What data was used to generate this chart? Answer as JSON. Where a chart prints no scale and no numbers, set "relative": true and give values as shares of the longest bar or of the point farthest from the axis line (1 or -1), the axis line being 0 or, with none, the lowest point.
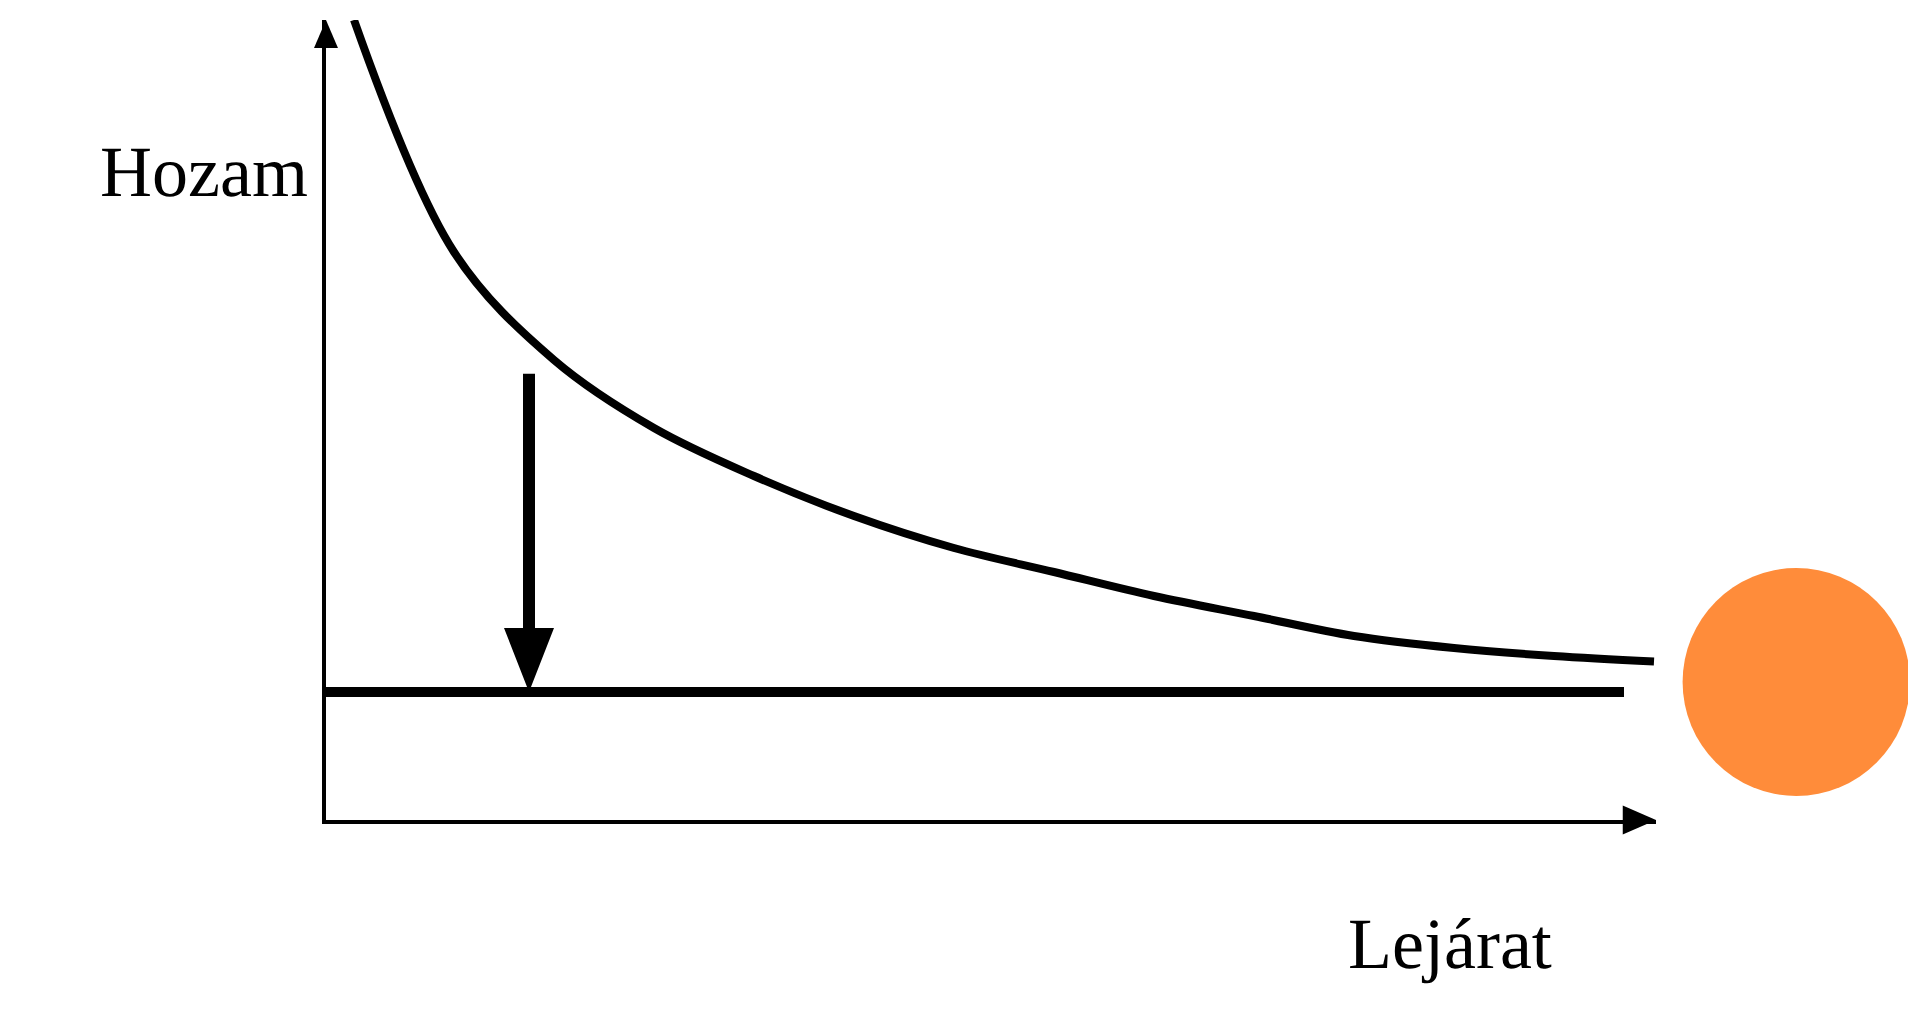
{
  "chart_data": {
    "type": "line",
    "relative": true,
    "xlabel": "Lejárat",
    "ylabel": "Hozam",
    "categories": [
      null,
      null,
      null,
      null,
      null,
      null,
      null,
      null,
      null,
      null,
      null,
      null,
      null,
      null
    ],
    "series": [
      {
        "color": "#000000",
        "values": [
          1.0,
          0.71,
          0.575,
          0.49,
          0.43,
          0.38,
          0.34,
          0.31,
          0.28,
          0.255,
          0.23,
          0.215,
          0.205,
          0.198
        ]
      }
    ],
    "ref_lines": [
      {
        "axis": "y",
        "value": 0.16,
        "color": "#000000"
      }
    ],
    "marker": "none",
    "line_style": "solid"
  }
}
